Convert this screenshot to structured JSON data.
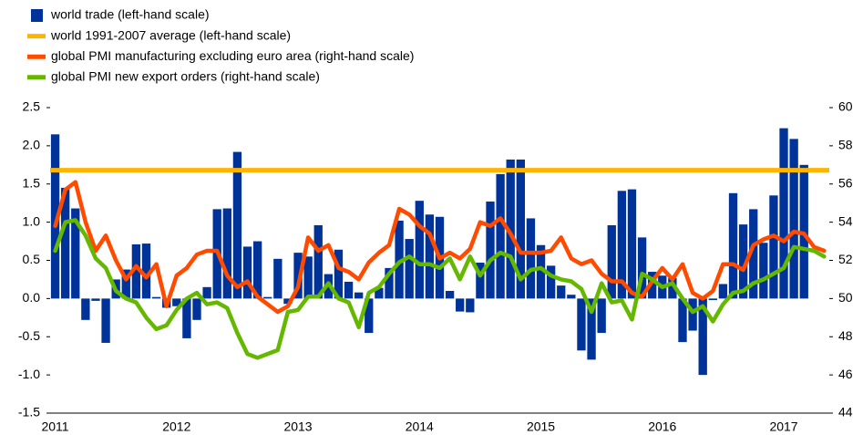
{
  "chart_data": {
    "type": "bar-line",
    "categories": [
      "2011",
      null,
      null,
      null,
      null,
      null,
      null,
      null,
      null,
      null,
      null,
      null,
      "2012",
      null,
      null,
      null,
      null,
      null,
      null,
      null,
      null,
      null,
      null,
      null,
      "2013",
      null,
      null,
      null,
      null,
      null,
      null,
      null,
      null,
      null,
      null,
      null,
      "2014",
      null,
      null,
      null,
      null,
      null,
      null,
      null,
      null,
      null,
      null,
      null,
      "2015",
      null,
      null,
      null,
      null,
      null,
      null,
      null,
      null,
      null,
      null,
      null,
      "2016",
      null,
      null,
      null,
      null,
      null,
      null,
      null,
      null,
      null,
      null,
      null,
      "2017",
      null,
      null,
      null,
      null
    ],
    "series": [
      {
        "name": "world trade (left-hand scale)",
        "type": "bar",
        "axis": "y",
        "color": "#003399",
        "values": [
          2.15,
          1.45,
          1.18,
          -0.28,
          -0.03,
          -0.58,
          0.25,
          0.38,
          0.71,
          0.72,
          0.02,
          -0.12,
          -0.1,
          -0.52,
          -0.28,
          0.15,
          1.17,
          1.18,
          1.92,
          0.68,
          0.75,
          0.02,
          0.52,
          -0.07,
          0.6,
          0.55,
          0.96,
          0.32,
          0.64,
          0.22,
          0.08,
          -0.45,
          0.14,
          0.4,
          1.02,
          0.78,
          1.28,
          1.1,
          1.07,
          0.1,
          -0.17,
          -0.18,
          0.47,
          1.27,
          1.63,
          1.82,
          1.82,
          1.05,
          0.7,
          0.43,
          0.17,
          0.05,
          -0.68,
          -0.8,
          -0.45,
          0.96,
          1.41,
          1.43,
          0.8,
          0.35,
          0.3,
          0.27,
          -0.57,
          -0.42,
          -1.0,
          -0.02,
          0.19,
          1.38,
          0.97,
          1.17,
          0.73,
          1.35,
          2.23,
          2.09,
          1.75,
          null,
          null
        ]
      },
      {
        "name": "world 1991-2007 average (left-hand scale)",
        "type": "hline",
        "axis": "y",
        "color": "#ffb400",
        "value": 1.68
      },
      {
        "name": "global PMI manufacturing excluding euro area (right-hand scale)",
        "type": "line",
        "axis": "y2",
        "color": "#ff4b00",
        "values": [
          53.8,
          55.7,
          56.1,
          54.0,
          52.5,
          53.3,
          52.0,
          51.0,
          51.7,
          51.1,
          51.8,
          49.6,
          51.2,
          51.6,
          52.3,
          52.5,
          52.5,
          51.2,
          50.6,
          50.9,
          50.1,
          49.7,
          49.3,
          49.6,
          50.6,
          53.2,
          52.5,
          52.8,
          51.6,
          51.4,
          51.0,
          51.9,
          52.4,
          52.8,
          54.7,
          54.4,
          53.8,
          53.4,
          52.1,
          52.4,
          52.1,
          52.6,
          54.0,
          53.8,
          54.2,
          53.4,
          52.4,
          52.4,
          52.4,
          52.5,
          53.2,
          52.1,
          51.8,
          52.0,
          51.3,
          50.9,
          50.9,
          50.3,
          50.1,
          50.9,
          51.6,
          51.0,
          51.8,
          50.3,
          50.0,
          50.4,
          51.8,
          51.8,
          51.5,
          52.8,
          53.1,
          53.3,
          53.0,
          53.5,
          53.4,
          52.7,
          52.5
        ]
      },
      {
        "name": "global PMI new export orders (right-hand scale)",
        "type": "line",
        "axis": "y2",
        "color": "#65b800",
        "values": [
          52.5,
          54.0,
          54.1,
          53.3,
          52.1,
          51.6,
          50.4,
          50.0,
          49.8,
          49.0,
          48.4,
          48.6,
          49.4,
          50.0,
          50.3,
          49.7,
          49.8,
          49.5,
          48.2,
          47.1,
          46.9,
          47.1,
          47.3,
          49.3,
          49.4,
          50.1,
          50.1,
          50.8,
          50.0,
          49.8,
          48.5,
          50.3,
          50.6,
          51.3,
          51.9,
          52.2,
          51.8,
          51.8,
          51.6,
          52.1,
          51.0,
          52.2,
          51.2,
          52.0,
          52.4,
          52.2,
          51.0,
          51.5,
          51.6,
          51.2,
          51.0,
          50.9,
          50.5,
          49.3,
          50.8,
          49.8,
          49.9,
          48.9,
          51.3,
          51.0,
          50.6,
          50.8,
          50.0,
          49.3,
          49.6,
          48.8,
          49.7,
          50.3,
          50.4,
          50.8,
          51.0,
          51.3,
          51.6,
          52.7,
          52.6,
          52.5,
          52.2
        ]
      }
    ],
    "ylim": [
      -1.5,
      2.5
    ],
    "yticks": [
      2.5,
      {
        "value": 2,
        "label": "2.0"
      },
      1.5,
      {
        "value": 1,
        "label": "1.0"
      },
      0.5,
      {
        "value": 0,
        "label": "0.0"
      },
      -0.5,
      {
        "value": -1,
        "label": "-1.0"
      },
      -1.5
    ],
    "y2lim": [
      44,
      60
    ],
    "y2ticks": [
      60,
      58,
      56,
      54,
      52,
      50,
      48,
      46,
      44
    ],
    "legend": "top-left"
  }
}
